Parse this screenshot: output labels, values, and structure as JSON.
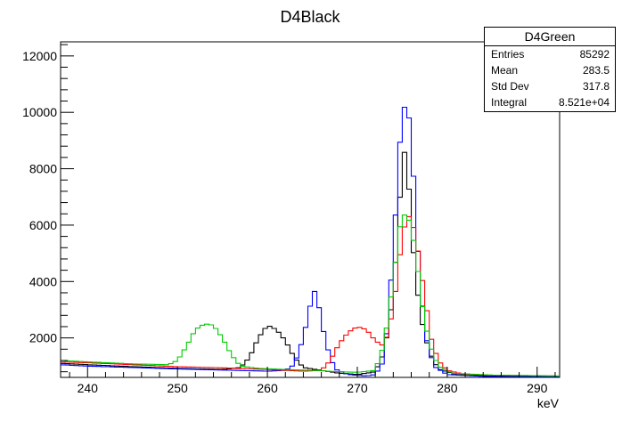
{
  "chart_data": {
    "type": "line",
    "title": "D4Black",
    "xlabel": "keV",
    "ylabel": "",
    "xlim": [
      237,
      292.5
    ],
    "ylim": [
      600,
      12500
    ],
    "x_ticks": [
      240,
      250,
      260,
      270,
      280,
      290
    ],
    "y_ticks": [
      2000,
      4000,
      6000,
      8000,
      10000,
      12000
    ],
    "grid": false,
    "step_style": true,
    "series": [
      {
        "color": "#000000",
        "points": [
          [
            237,
            1100
          ],
          [
            240,
            1050
          ],
          [
            245,
            980
          ],
          [
            250,
            920
          ],
          [
            255,
            880
          ],
          [
            257,
            950
          ],
          [
            258,
            1300
          ],
          [
            259,
            2000
          ],
          [
            260,
            2450
          ],
          [
            261,
            2300
          ],
          [
            262,
            1900
          ],
          [
            263,
            1300
          ],
          [
            264,
            950
          ],
          [
            266,
            850
          ],
          [
            268,
            750
          ],
          [
            270,
            700
          ],
          [
            272,
            800
          ],
          [
            273,
            1500
          ],
          [
            274,
            3500
          ],
          [
            274.7,
            6800
          ],
          [
            275.2,
            8700
          ],
          [
            275.7,
            7500
          ],
          [
            276.3,
            4800
          ],
          [
            277,
            2800
          ],
          [
            278,
            1500
          ],
          [
            279,
            900
          ],
          [
            281,
            700
          ],
          [
            285,
            650
          ],
          [
            292.5,
            620
          ]
        ]
      },
      {
        "color": "#0000ff",
        "points": [
          [
            237,
            1050
          ],
          [
            240,
            1000
          ],
          [
            245,
            950
          ],
          [
            250,
            900
          ],
          [
            255,
            860
          ],
          [
            260,
            820
          ],
          [
            262,
            850
          ],
          [
            263,
            1050
          ],
          [
            264,
            2000
          ],
          [
            264.8,
            3200
          ],
          [
            265.3,
            3700
          ],
          [
            265.8,
            3000
          ],
          [
            266.5,
            1800
          ],
          [
            267.5,
            900
          ],
          [
            269,
            700
          ],
          [
            271,
            650
          ],
          [
            272,
            700
          ],
          [
            273,
            1200
          ],
          [
            274,
            5000
          ],
          [
            274.7,
            8800
          ],
          [
            275.2,
            10200
          ],
          [
            275.7,
            10000
          ],
          [
            276.2,
            8000
          ],
          [
            276.8,
            4800
          ],
          [
            277.5,
            2200
          ],
          [
            278.5,
            1000
          ],
          [
            280,
            700
          ],
          [
            285,
            620
          ],
          [
            292.5,
            600
          ]
        ]
      },
      {
        "color": "#ff0000",
        "points": [
          [
            237,
            1150
          ],
          [
            240,
            1120
          ],
          [
            245,
            1050
          ],
          [
            250,
            980
          ],
          [
            255,
            940
          ],
          [
            260,
            880
          ],
          [
            264,
            820
          ],
          [
            266,
            850
          ],
          [
            267,
            1200
          ],
          [
            268,
            1800
          ],
          [
            269,
            2200
          ],
          [
            270,
            2400
          ],
          [
            271,
            2300
          ],
          [
            272,
            1900
          ],
          [
            273,
            1700
          ],
          [
            274,
            3000
          ],
          [
            275,
            5600
          ],
          [
            275.6,
            6400
          ],
          [
            276.2,
            6000
          ],
          [
            276.8,
            5000
          ],
          [
            277.5,
            3500
          ],
          [
            278.2,
            2000
          ],
          [
            279,
            1200
          ],
          [
            280,
            850
          ],
          [
            282,
            700
          ],
          [
            285,
            680
          ],
          [
            292.5,
            650
          ]
        ]
      },
      {
        "color": "#00cc00",
        "points": [
          [
            237,
            1200
          ],
          [
            240,
            1150
          ],
          [
            245,
            1080
          ],
          [
            249,
            1050
          ],
          [
            250,
            1200
          ],
          [
            251,
            1700
          ],
          [
            252,
            2300
          ],
          [
            253,
            2500
          ],
          [
            254,
            2450
          ],
          [
            255,
            2000
          ],
          [
            256,
            1400
          ],
          [
            257,
            1000
          ],
          [
            259,
            920
          ],
          [
            262,
            880
          ],
          [
            265,
            850
          ],
          [
            268,
            800
          ],
          [
            270,
            780
          ],
          [
            272,
            850
          ],
          [
            273,
            1800
          ],
          [
            274,
            4000
          ],
          [
            274.7,
            5900
          ],
          [
            275.3,
            6400
          ],
          [
            275.9,
            6100
          ],
          [
            276.5,
            5000
          ],
          [
            277.2,
            3200
          ],
          [
            278,
            1800
          ],
          [
            279,
            1000
          ],
          [
            280.5,
            750
          ],
          [
            285,
            680
          ],
          [
            292.5,
            650
          ]
        ]
      }
    ],
    "stats_box": {
      "title": "D4Green",
      "rows": [
        {
          "label": "Entries",
          "value": "85292"
        },
        {
          "label": "Mean",
          "value": "283.5"
        },
        {
          "label": "Std Dev",
          "value": "317.8"
        },
        {
          "label": "Integral",
          "value": "8.521e+04"
        }
      ]
    }
  }
}
